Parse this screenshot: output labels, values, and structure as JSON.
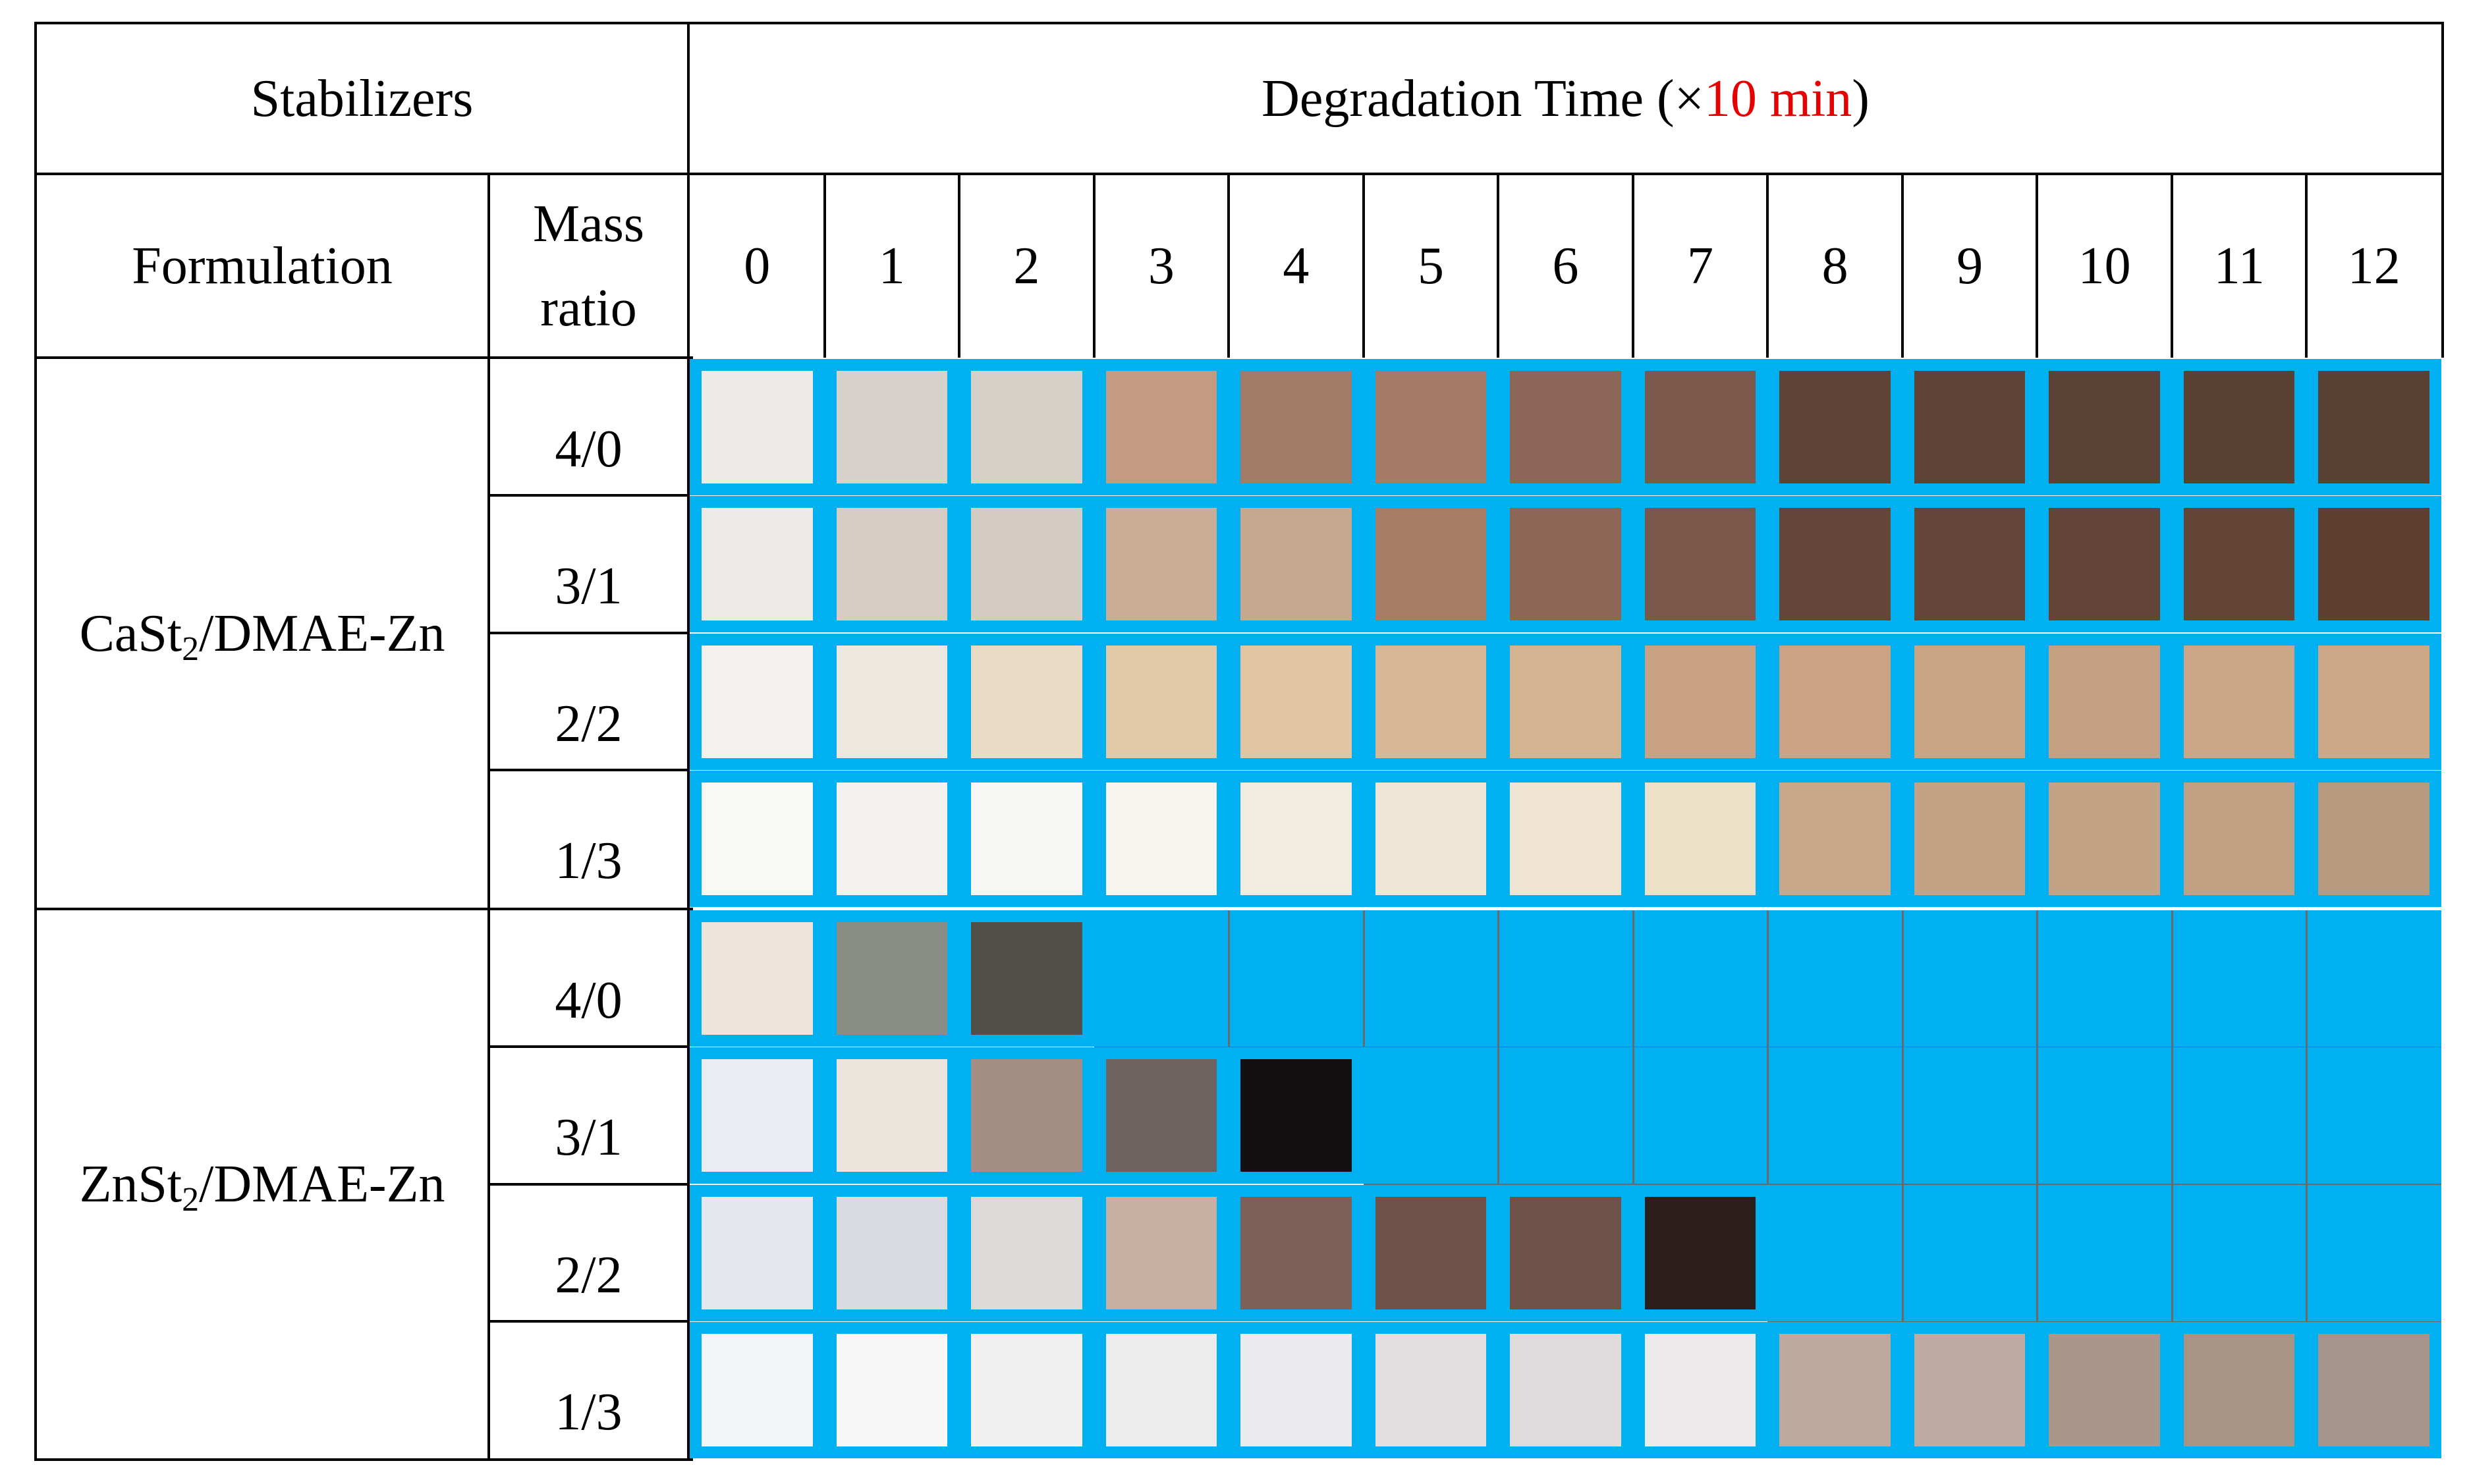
{
  "header": {
    "stabilizers_label": "Stabilizers",
    "time_prefix": "Degradation Time (×",
    "time_unit": "10 min",
    "time_suffix": ")",
    "time_unit_color": "#e60000",
    "formulation_label": "Formulation",
    "mass_ratio_line1": "Mass",
    "mass_ratio_line2": "ratio",
    "time_points": [
      "0",
      "1",
      "2",
      "3",
      "4",
      "5",
      "6",
      "7",
      "8",
      "9",
      "10",
      "11",
      "12"
    ]
  },
  "groups": [
    {
      "formulation_main": "CaSt",
      "formulation_sub": "2",
      "formulation_rest": "/DMAE-Zn",
      "rows": [
        {
          "ratio": "4/0",
          "colors": [
            "#ecebe8",
            "#d8d2cc",
            "#d5d0c8",
            "#c39b82",
            "#a27c69",
            "#a47b68",
            "#8c6656",
            "#7b5a4b",
            "#5f4336",
            "#5e4336",
            "#5b4235",
            "#5a4134",
            "#5b4134"
          ]
        },
        {
          "ratio": "3/1",
          "colors": [
            "#eceae6",
            "#d7ccc4",
            "#d4ccc2",
            "#c9ad96",
            "#c5a890",
            "#a87d68",
            "#8d6655",
            "#7b5749",
            "#644638",
            "#644638",
            "#634537",
            "#624535",
            "#5e3f30"
          ]
        },
        {
          "ratio": "2/2",
          "colors": [
            "#f2f1ee",
            "#ede8df",
            "#eadcc4",
            "#e2c9a8",
            "#e0c6a3",
            "#d6b896",
            "#d4b391",
            "#c9a284",
            "#c9a383",
            "#caa584",
            "#c6a083",
            "#cba686",
            "#cca887"
          ]
        },
        {
          "ratio": "1/3",
          "colors": [
            "#f8f8f7",
            "#f3f2ee",
            "#f6f6f5",
            "#f7f5ef",
            "#f2ece0",
            "#efe6d5",
            "#eee4d1",
            "#ece0c6",
            "#c7a88a",
            "#c3a285",
            "#c3a385",
            "#c1a083",
            "#b69a7f"
          ]
        }
      ]
    },
    {
      "formulation_main": "ZnSt",
      "formulation_sub": "2",
      "formulation_rest": "/DMAE-Zn",
      "rows": [
        {
          "ratio": "4/0",
          "colors": [
            "#ece4da",
            "#8a8c86",
            "#505049"
          ],
          "blue_from": 3
        },
        {
          "ratio": "3/1",
          "colors": [
            "#e9edf1",
            "#ebe4dc",
            "#a58e84",
            "#6d6461",
            "#141011"
          ],
          "blue_from": 5
        },
        {
          "ratio": "2/2",
          "colors": [
            "#e4e8ee",
            "#dadbe0",
            "#dcdad9",
            "#c7afa2",
            "#7d6057",
            "#6f5248",
            "#6e5248",
            "#2b1e1b"
          ],
          "blue_from": 8
        },
        {
          "ratio": "1/3",
          "colors": [
            "#f4f5f8",
            "#f7f7f8",
            "#f1f0f1",
            "#ececec",
            "#ebeaec",
            "#e3dfe0",
            "#dfdbdd",
            "#eceaeb",
            "#bea89e",
            "#c0aba3",
            "#ab968a",
            "#a99385",
            "#a69389"
          ]
        }
      ]
    }
  ]
}
